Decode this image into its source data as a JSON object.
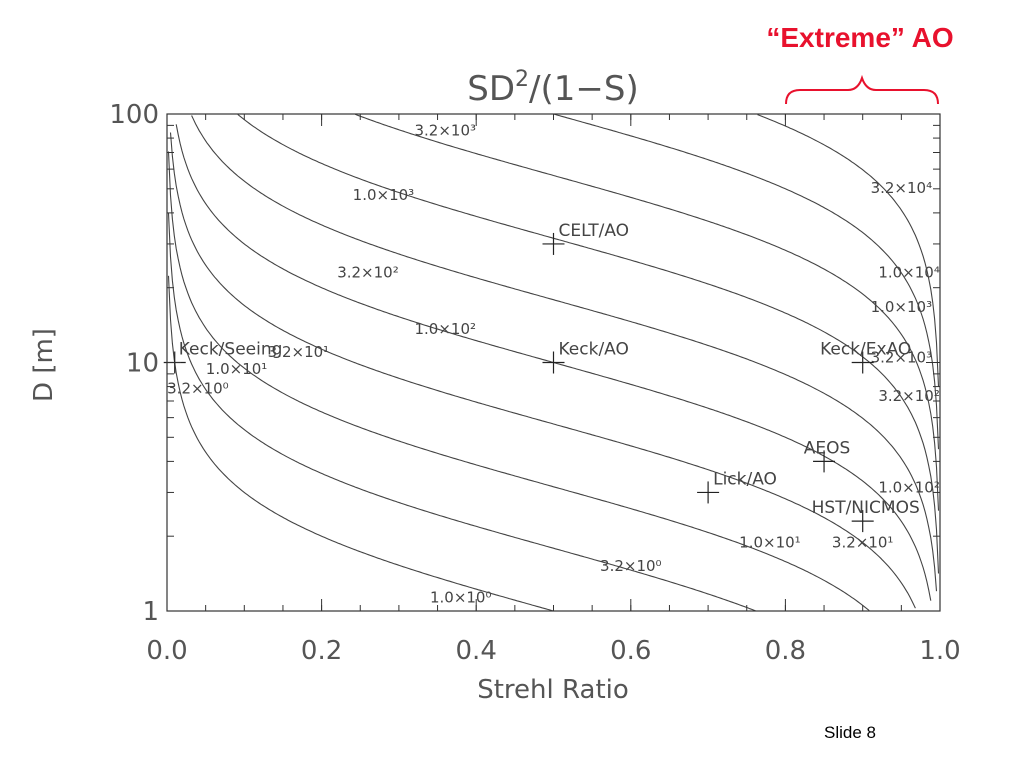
{
  "slide": {
    "callout": "“Extreme” AO",
    "number": "Slide 8"
  },
  "chart_data": {
    "type": "line",
    "title": "SD²/(1−S)",
    "xlabel": "Strehl Ratio",
    "ylabel": "D [m]",
    "xlim": [
      0.0,
      1.0
    ],
    "ylim": [
      1,
      100
    ],
    "yscale": "log",
    "x_ticks": [
      "0.0",
      "0.2",
      "0.4",
      "0.6",
      "0.8",
      "1.0"
    ],
    "y_ticks": [
      "1",
      "10",
      "100"
    ],
    "grid": false,
    "contour_levels": [
      1,
      3.2,
      10,
      32,
      100,
      320,
      1000,
      3200,
      10000,
      32000
    ],
    "contour_labels": [
      {
        "text": "1.0×10⁰",
        "level": 1,
        "x": 0.38,
        "y": 1.08
      },
      {
        "text": "3.2×10⁰",
        "level": 3.2,
        "x": 0.6,
        "y": 1.45
      },
      {
        "text": "3.2×10⁰",
        "level": 3.2,
        "x": 0.04,
        "y": 7.5
      },
      {
        "text": "1.0×10¹",
        "level": 10,
        "x": 0.09,
        "y": 9.0
      },
      {
        "text": "1.0×10¹",
        "level": 10,
        "x": 0.78,
        "y": 1.8
      },
      {
        "text": "3.2×10¹",
        "level": 32,
        "x": 0.17,
        "y": 10.5
      },
      {
        "text": "3.2×10¹",
        "level": 32,
        "x": 0.9,
        "y": 1.8
      },
      {
        "text": "1.0×10²",
        "level": 100,
        "x": 0.36,
        "y": 13.0
      },
      {
        "text": "1.0×10²",
        "level": 100,
        "x": 0.96,
        "y": 3.0
      },
      {
        "text": "3.2×10²",
        "level": 320,
        "x": 0.26,
        "y": 22.0
      },
      {
        "text": "3.2×10²",
        "level": 320,
        "x": 0.96,
        "y": 7.0
      },
      {
        "text": "1.0×10³",
        "level": 1000,
        "x": 0.28,
        "y": 45.0
      },
      {
        "text": "1.0×10³",
        "level": 1000,
        "x": 0.95,
        "y": 16.0
      },
      {
        "text": "3.2×10³",
        "level": 3200,
        "x": 0.36,
        "y": 82.0
      },
      {
        "text": "3.2×10³",
        "level": 3200,
        "x": 0.95,
        "y": 10.0
      },
      {
        "text": "1.0×10⁴",
        "level": 10000,
        "x": 0.96,
        "y": 22.0
      },
      {
        "text": "3.2×10⁴",
        "level": 32000,
        "x": 0.95,
        "y": 48.0
      }
    ],
    "points": [
      {
        "label": "CELT/AO",
        "x": 0.5,
        "y": 30
      },
      {
        "label": "Keck/Seeing",
        "x": 0.01,
        "y": 10
      },
      {
        "label": "Keck/AO",
        "x": 0.5,
        "y": 10
      },
      {
        "label": "Keck/ExAO",
        "x": 0.9,
        "y": 10
      },
      {
        "label": "AEOS",
        "x": 0.85,
        "y": 4
      },
      {
        "label": "Lick/AO",
        "x": 0.7,
        "y": 3
      },
      {
        "label": "HST/NICMOS",
        "x": 0.9,
        "y": 2.3
      }
    ],
    "annotation": {
      "text": "“Extreme” AO",
      "x_range": [
        0.8,
        1.0
      ]
    }
  }
}
